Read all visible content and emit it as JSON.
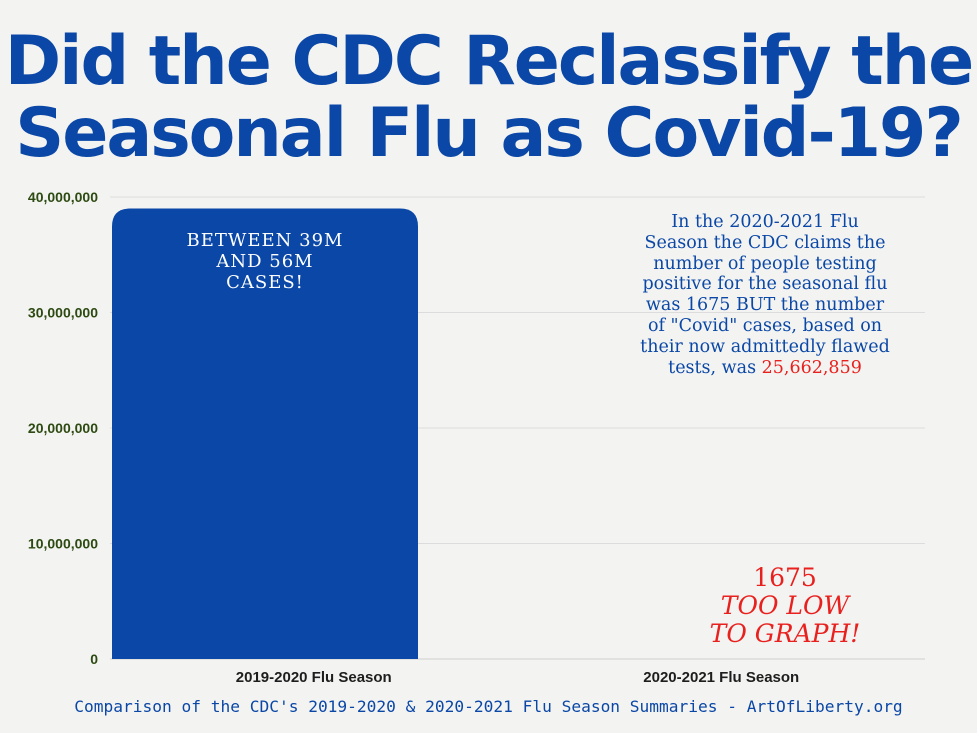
{
  "title": {
    "line1": "Did the CDC Reclassify the",
    "line2": "Seasonal Flu as Covid-19?"
  },
  "colors": {
    "accent": "#0a47a6",
    "bar": "#0a47a6",
    "highlight": "#e8211e",
    "axis_text": "#2d4a12",
    "background": "#f3f3f1"
  },
  "chart_data": {
    "type": "bar",
    "categories": [
      "2019-2020 Flu Season",
      "2020-2021 Flu Season"
    ],
    "values": [
      39000000,
      1675
    ],
    "ylim": [
      0,
      40000000
    ],
    "yticks": [
      0,
      10000000,
      20000000,
      30000000,
      40000000
    ],
    "ytick_labels": [
      "0",
      "10,000,000",
      "20,000,000",
      "30,000,000",
      "40,000,000"
    ],
    "grid": true,
    "xlabel": "",
    "ylabel": ""
  },
  "bar_annotation": {
    "lines": [
      "BETWEEN 39M",
      "AND 56M",
      "CASES!"
    ]
  },
  "note": {
    "text": "In the 2020-2021 Flu Season the CDC claims the number of people testing positive for the seasonal flu was 1675 BUT the number of \"Covid\" cases, based on their now admittedly flawed tests, was",
    "highlight": "25,662,859"
  },
  "low_annotation": {
    "value": "1675",
    "line1": "TOO LOW",
    "line2": "TO GRAPH!"
  },
  "footer": "Comparison of the CDC's 2019-2020 & 2020-2021 Flu Season Summaries - ArtOfLiberty.org"
}
